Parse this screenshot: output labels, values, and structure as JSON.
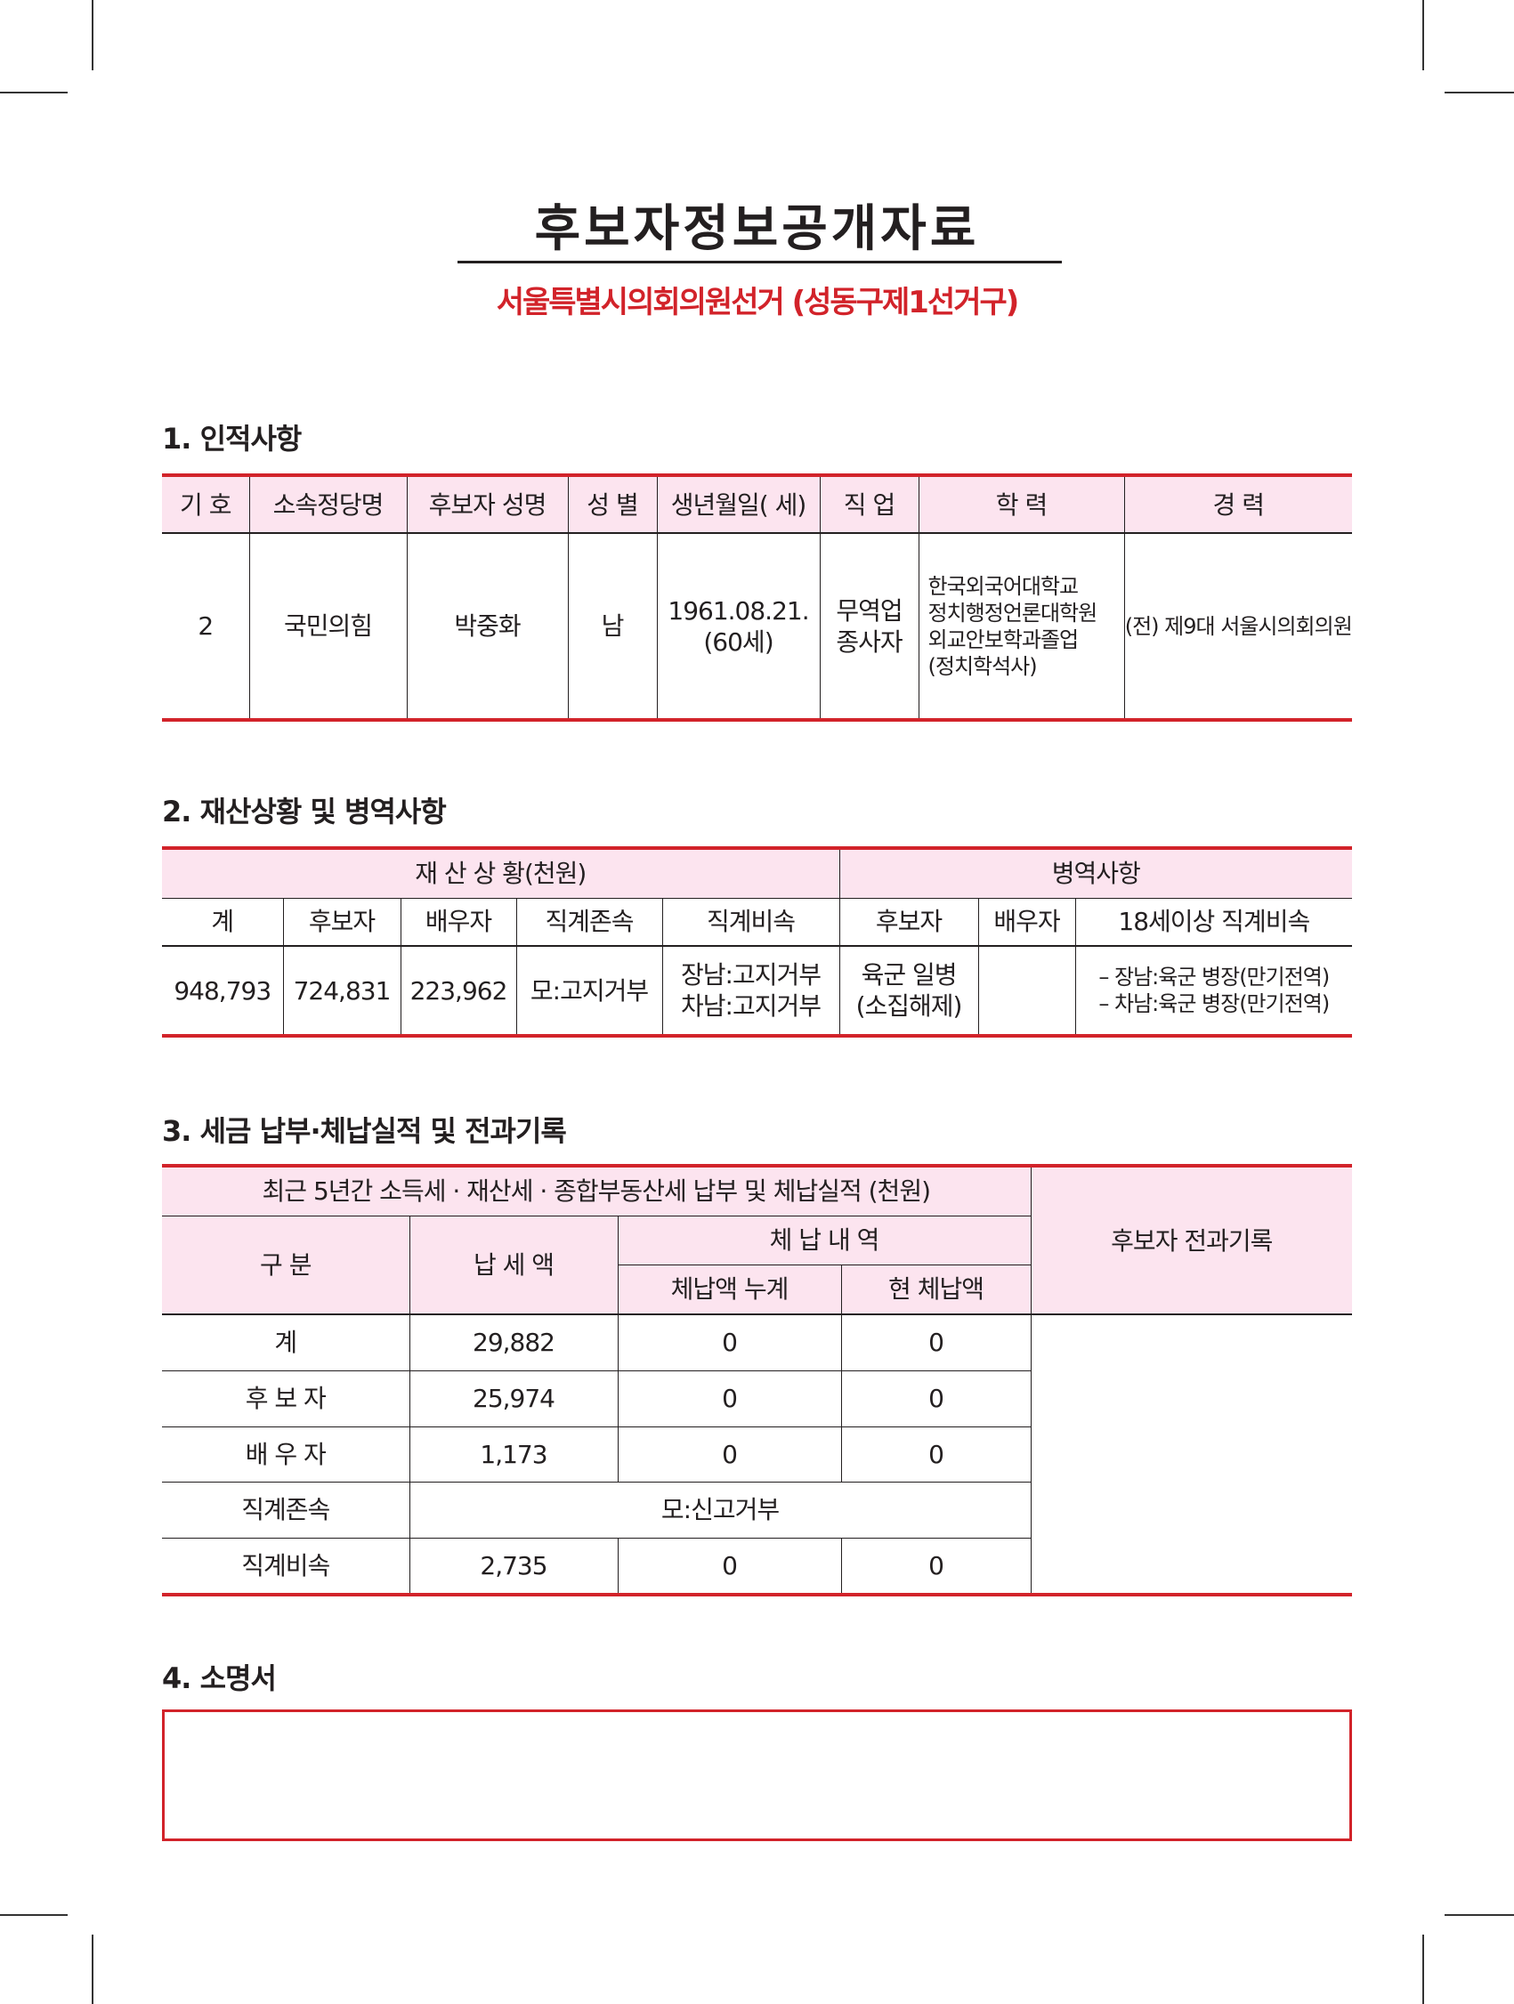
{
  "header": {
    "title": "후보자정보공개자료",
    "subtitle": "서울특별시의회의원선거 (성동구제1선거구)"
  },
  "colors": {
    "accent_red": "#d2232a",
    "header_pink": "#fce4ef"
  },
  "section1": {
    "heading": "1. 인적사항",
    "headers": [
      "기 호",
      "소속정당명",
      "후보자 성명",
      "성 별",
      "생년월일(  세)",
      "직  업",
      "학 력",
      "경 력"
    ],
    "row": {
      "number": "2",
      "party": "국민의힘",
      "name": "박중화",
      "gender": "남",
      "birth": "1961.08.21.",
      "age": "(60세)",
      "job_line1": "무역업",
      "job_line2": "종사자",
      "education": [
        "한국외국어대학교",
        "정치행정언론대학원",
        "외교안보학과졸업",
        "(정치학석사)"
      ],
      "career": "(전) 제9대 서울시의회의원"
    }
  },
  "section2": {
    "heading": "2. 재산상황 및 병역사항",
    "group_headers": [
      "재 산 상 황(천원)",
      "병역사항"
    ],
    "headers": [
      "계",
      "후보자",
      "배우자",
      "직계존속",
      "직계비속",
      "후보자",
      "배우자",
      "18세이상 직계비속"
    ],
    "row": {
      "total": "948,793",
      "candidate": "724,831",
      "spouse": "223,962",
      "ascendant": "모:고지거부",
      "descendant": [
        "장남:고지거부",
        "차남:고지거부"
      ],
      "mil_candidate": [
        "육군 일병",
        "(소집해제)"
      ],
      "mil_spouse": "",
      "mil_descendant": [
        "– 장남:육군 병장(만기전역)",
        "– 차남:육군 병장(만기전역)"
      ]
    }
  },
  "section3": {
    "heading": "3. 세금 납부·체납실적 및 전과기록",
    "tax_header": "최근 5년간 소득세 · 재산세 · 종합부동산세 납부 및 체납실적 (천원)",
    "criminal_header": "후보자 전과기록",
    "col_category": "구    분",
    "col_paid": "납 세 액",
    "col_arrears": "체 납 내 역",
    "col_arrears_total": "체납액 누계",
    "col_arrears_current": "현 체납액",
    "rows": [
      {
        "label": "계",
        "paid": "29,882",
        "arrears_total": "0",
        "arrears_current": "0"
      },
      {
        "label": "후 보 자",
        "paid": "25,974",
        "arrears_total": "0",
        "arrears_current": "0"
      },
      {
        "label": "배 우 자",
        "paid": "1,173",
        "arrears_total": "0",
        "arrears_current": "0"
      },
      {
        "label": "직계존속",
        "note": "모:신고거부"
      },
      {
        "label": "직계비속",
        "paid": "2,735",
        "arrears_total": "0",
        "arrears_current": "0"
      }
    ],
    "criminal_record": ""
  },
  "section4": {
    "heading": "4. 소명서",
    "content": ""
  }
}
